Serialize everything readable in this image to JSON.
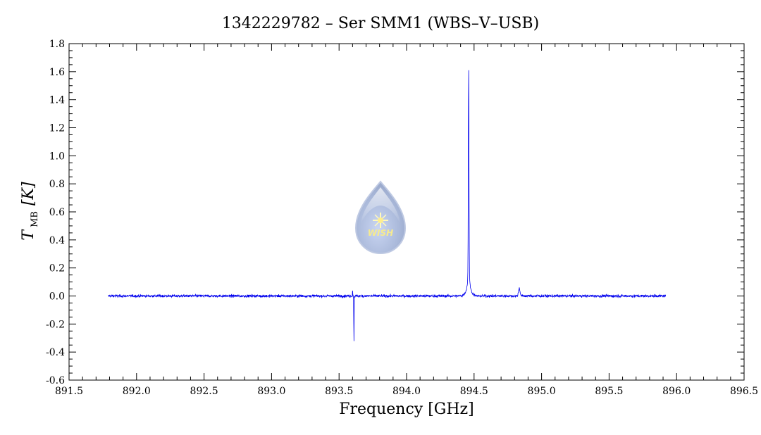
{
  "chart_data": {
    "type": "line",
    "title": "1342229782 – Ser SMM1 (WBS–V–USB)",
    "xlabel": "Frequency [GHz]",
    "ylabel": {
      "symbol": "T",
      "subscript": "MB",
      "unit": "[K]"
    },
    "xlim": [
      891.5,
      896.5
    ],
    "ylim": [
      -0.6,
      1.8
    ],
    "x_ticks": [
      "891.5",
      "892.0",
      "892.5",
      "893.0",
      "893.5",
      "894.0",
      "894.5",
      "895.0",
      "895.5",
      "896.0",
      "896.5"
    ],
    "y_ticks": [
      "-0.6",
      "-0.4",
      "-0.2",
      "0.0",
      "0.2",
      "0.4",
      "0.6",
      "0.8",
      "1.0",
      "1.2",
      "1.4",
      "1.6",
      "1.8"
    ],
    "grid": false,
    "series": [
      {
        "color": "#0000ee",
        "x_range": [
          891.79,
          895.92
        ],
        "baseline": 0.0,
        "noise_rms": 0.012,
        "features": [
          {
            "x": 893.61,
            "y": -0.34,
            "kind": "absorption spike"
          },
          {
            "x": 893.6,
            "y": 0.05,
            "kind": "spike"
          },
          {
            "x": 894.46,
            "y": 1.57,
            "kind": "emission peak"
          },
          {
            "x": 894.835,
            "y": 0.07,
            "kind": "emission"
          }
        ]
      }
    ]
  },
  "logo": {
    "text": "WISH"
  },
  "colors": {
    "line": "#0000ee",
    "axes": "#000000"
  }
}
